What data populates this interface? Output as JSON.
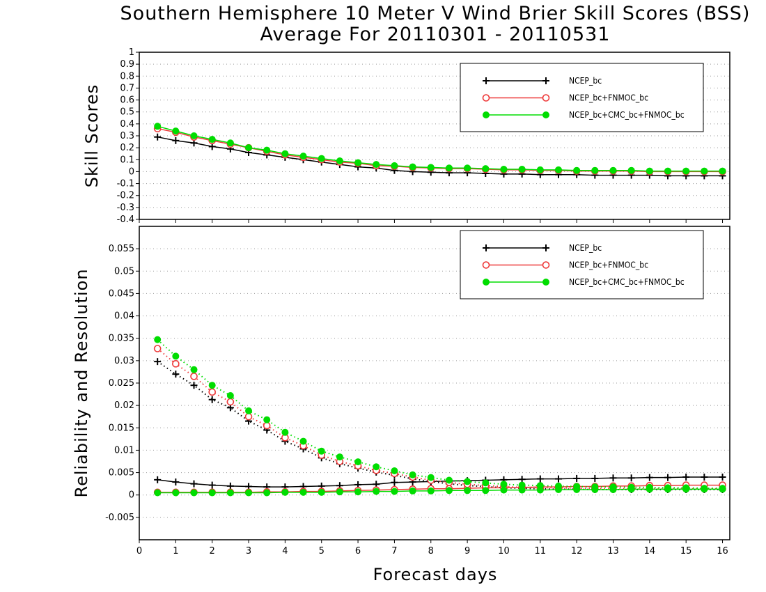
{
  "title": {
    "line1": "Southern Hemisphere 10 Meter V Wind Brier Skill Scores (BSS)",
    "line2": "Average For 20110301 - 20110531"
  },
  "colors": {
    "NCEP_bc": "#000000",
    "NCEP_bc+FNMOC_bc": "#ee3a3a",
    "NCEP_bc+CMC_bc+FNMOC_bc": "#00dd00"
  },
  "chart_data": [
    {
      "type": "line",
      "ylabel": "Skill Scores",
      "xlim": [
        0,
        16.2
      ],
      "ylim": [
        -0.4,
        1
      ],
      "xticks": [
        0,
        1,
        2,
        3,
        4,
        5,
        6,
        7,
        8,
        9,
        10,
        11,
        12,
        13,
        14,
        15,
        16
      ],
      "yticks": [
        -0.4,
        -0.3,
        -0.2,
        -0.1,
        0,
        0.1,
        0.2,
        0.3,
        0.4,
        0.5,
        0.6,
        0.7,
        0.8,
        0.9,
        1
      ],
      "grid": true,
      "legend": "top-right",
      "x": [
        0.5,
        1,
        1.5,
        2,
        2.5,
        3,
        3.5,
        4,
        4.5,
        5,
        5.5,
        6,
        6.5,
        7,
        7.5,
        8,
        8.5,
        9,
        9.5,
        10,
        10.5,
        11,
        11.5,
        12,
        12.5,
        13,
        13.5,
        14,
        14.5,
        15,
        15.5,
        16
      ],
      "series": [
        {
          "name": "NCEP_bc",
          "marker": "plus",
          "line": "solid",
          "values": [
            0.29,
            0.26,
            0.24,
            0.21,
            0.19,
            0.16,
            0.14,
            0.12,
            0.1,
            0.08,
            0.06,
            0.04,
            0.03,
            0.01,
            0.0,
            -0.005,
            -0.01,
            -0.01,
            -0.015,
            -0.02,
            -0.02,
            -0.025,
            -0.025,
            -0.025,
            -0.03,
            -0.03,
            -0.03,
            -0.03,
            -0.035,
            -0.035,
            -0.035,
            -0.035
          ]
        },
        {
          "name": "NCEP_bc+FNMOC_bc",
          "marker": "circle",
          "line": "solid",
          "values": [
            0.36,
            0.33,
            0.29,
            0.26,
            0.23,
            0.2,
            0.17,
            0.14,
            0.12,
            0.1,
            0.08,
            0.07,
            0.05,
            0.045,
            0.035,
            0.03,
            0.025,
            0.025,
            0.02,
            0.015,
            0.015,
            0.01,
            0.01,
            0.005,
            0.005,
            0.005,
            0.005,
            0.0,
            0.0,
            0.0,
            0.0,
            0.0
          ]
        },
        {
          "name": "NCEP_bc+CMC_bc+FNMOC_bc",
          "marker": "dot",
          "line": "solid",
          "values": [
            0.38,
            0.34,
            0.3,
            0.27,
            0.24,
            0.2,
            0.18,
            0.15,
            0.13,
            0.11,
            0.09,
            0.075,
            0.06,
            0.05,
            0.04,
            0.035,
            0.03,
            0.03,
            0.025,
            0.02,
            0.02,
            0.015,
            0.015,
            0.01,
            0.01,
            0.01,
            0.01,
            0.005,
            0.005,
            0.005,
            0.005,
            0.005
          ]
        }
      ]
    },
    {
      "type": "line",
      "ylabel": "Reliability and Resolution",
      "xlabel": "Forecast days",
      "xlim": [
        0,
        16.2
      ],
      "ylim": [
        -0.01,
        0.06
      ],
      "xticks": [
        0,
        1,
        2,
        3,
        4,
        5,
        6,
        7,
        8,
        9,
        10,
        11,
        12,
        13,
        14,
        15,
        16
      ],
      "yticks": [
        -0.005,
        0,
        0.005,
        0.01,
        0.015,
        0.02,
        0.025,
        0.03,
        0.035,
        0.04,
        0.045,
        0.05,
        0.055
      ],
      "grid": true,
      "legend": "top-right",
      "x": [
        0.5,
        1,
        1.5,
        2,
        2.5,
        3,
        3.5,
        4,
        4.5,
        5,
        5.5,
        6,
        6.5,
        7,
        7.5,
        8,
        8.5,
        9,
        9.5,
        10,
        10.5,
        11,
        11.5,
        12,
        12.5,
        13,
        13.5,
        14,
        14.5,
        15,
        15.5,
        16
      ],
      "series": [
        {
          "name": "NCEP_bc",
          "kind": "reliability",
          "marker": "plus",
          "line": "solid",
          "values": [
            0.0034,
            0.0029,
            0.0025,
            0.0022,
            0.002,
            0.0019,
            0.0018,
            0.0018,
            0.0019,
            0.002,
            0.0021,
            0.0023,
            0.0024,
            0.0028,
            0.0029,
            0.003,
            0.0031,
            0.0032,
            0.0033,
            0.0034,
            0.0035,
            0.0036,
            0.0036,
            0.0037,
            0.0037,
            0.0038,
            0.0038,
            0.0039,
            0.0039,
            0.004,
            0.004,
            0.004
          ]
        },
        {
          "kind": "resolution",
          "marker": "plus",
          "line": "dotted",
          "values": [
            0.0298,
            0.027,
            0.0245,
            0.0213,
            0.0195,
            0.0165,
            0.0145,
            0.012,
            0.0103,
            0.0083,
            0.007,
            0.006,
            0.0051,
            0.0044,
            0.0036,
            0.003,
            0.0025,
            0.0021,
            0.0019,
            0.0016,
            0.0015,
            0.0014,
            0.0013,
            0.0013,
            0.0012,
            0.0012,
            0.0012,
            0.0012,
            0.0012,
            0.0012,
            0.0012,
            0.0012
          ]
        },
        {
          "name": "NCEP_bc+FNMOC_bc",
          "kind": "reliability",
          "marker": "circle",
          "line": "solid",
          "values": [
            0.0006,
            0.0006,
            0.0006,
            0.0006,
            0.0006,
            0.0006,
            0.0007,
            0.0007,
            0.0008,
            0.0008,
            0.0009,
            0.001,
            0.0011,
            0.0012,
            0.0013,
            0.0014,
            0.0014,
            0.0015,
            0.0016,
            0.0016,
            0.0017,
            0.0018,
            0.0018,
            0.0019,
            0.0019,
            0.002,
            0.002,
            0.0021,
            0.0021,
            0.0022,
            0.0022,
            0.0022
          ]
        },
        {
          "kind": "resolution",
          "marker": "circle",
          "line": "dotted",
          "values": [
            0.0327,
            0.0293,
            0.0265,
            0.023,
            0.0208,
            0.0175,
            0.0155,
            0.0128,
            0.011,
            0.0089,
            0.0075,
            0.0065,
            0.0055,
            0.0048,
            0.004,
            0.0033,
            0.0028,
            0.0024,
            0.0021,
            0.0019,
            0.0017,
            0.0016,
            0.0016,
            0.0015,
            0.0015,
            0.0015,
            0.0014,
            0.0014,
            0.0014,
            0.0014,
            0.0014,
            0.0014
          ]
        },
        {
          "name": "NCEP_bc+CMC_bc+FNMOC_bc",
          "kind": "reliability",
          "marker": "dot",
          "line": "solid",
          "values": [
            0.0005,
            0.0005,
            0.0005,
            0.0005,
            0.0005,
            0.0005,
            0.0005,
            0.0006,
            0.0006,
            0.0006,
            0.0007,
            0.0007,
            0.0008,
            0.0008,
            0.0009,
            0.0009,
            0.001,
            0.001,
            0.001,
            0.0011,
            0.0011,
            0.0011,
            0.0012,
            0.0012,
            0.0012,
            0.0012,
            0.0013,
            0.0013,
            0.0013,
            0.0013,
            0.0013,
            0.0013
          ]
        },
        {
          "kind": "resolution",
          "marker": "dot",
          "line": "dotted",
          "values": [
            0.0347,
            0.031,
            0.028,
            0.0245,
            0.0222,
            0.0188,
            0.0168,
            0.014,
            0.012,
            0.0098,
            0.0085,
            0.0074,
            0.0063,
            0.0054,
            0.0045,
            0.0039,
            0.0033,
            0.003,
            0.0027,
            0.0024,
            0.0022,
            0.0021,
            0.002,
            0.0019,
            0.0018,
            0.0018,
            0.0017,
            0.0017,
            0.0016,
            0.0016,
            0.0015,
            0.0015
          ]
        }
      ]
    }
  ]
}
